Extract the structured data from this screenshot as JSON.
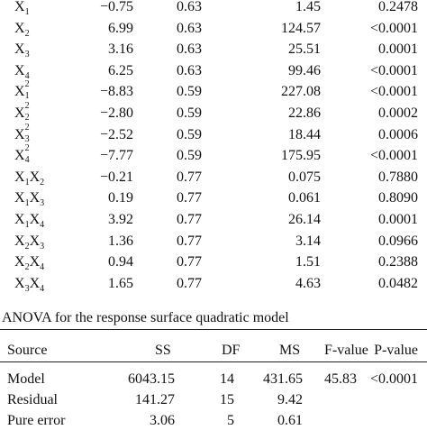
{
  "coef_table": {
    "rows": [
      {
        "term": "X|1",
        "coef": "−0.75",
        "se": "0.63",
        "f": "1.45",
        "p": "0.2478"
      },
      {
        "term": "X|2",
        "coef": "6.99",
        "se": "0.63",
        "f": "124.57",
        "p": "<0.0001"
      },
      {
        "term": "X|3",
        "coef": "3.16",
        "se": "0.63",
        "f": "25.51",
        "p": "0.0001"
      },
      {
        "term": "X|4",
        "coef": "6.25",
        "se": "0.63",
        "f": "99.46",
        "p": "<0.0001"
      },
      {
        "term": "X|1|2",
        "coef": "−8.83",
        "se": "0.59",
        "f": "227.08",
        "p": "<0.0001"
      },
      {
        "term": "X|2|2",
        "coef": "−2.80",
        "se": "0.59",
        "f": "22.86",
        "p": "0.0002"
      },
      {
        "term": "X|3|2",
        "coef": "−2.52",
        "se": "0.59",
        "f": "18.44",
        "p": "0.0006"
      },
      {
        "term": "X|4|2",
        "coef": "−7.77",
        "se": "0.59",
        "f": "175.95",
        "p": "<0.0001"
      },
      {
        "term": "X|1|X|2",
        "coef": "−0.21",
        "se": "0.77",
        "f": "0.075",
        "p": "0.7880"
      },
      {
        "term": "X|1|X|3",
        "coef": "0.19",
        "se": "0.77",
        "f": "0.061",
        "p": "0.8090"
      },
      {
        "term": "X|1|X|4",
        "coef": "3.92",
        "se": "0.77",
        "f": "26.14",
        "p": "0.0001"
      },
      {
        "term": "X|2|X|3",
        "coef": "1.36",
        "se": "0.77",
        "f": "3.14",
        "p": "0.0966"
      },
      {
        "term": "X|2|X|4",
        "coef": "0.94",
        "se": "0.77",
        "f": "1.51",
        "p": "0.2388"
      },
      {
        "term": "X|3|X|4",
        "coef": "1.65",
        "se": "0.77",
        "f": "4.63",
        "p": "0.0482"
      }
    ]
  },
  "anova": {
    "caption": "ANOVA for the response surface quadratic model",
    "headers": {
      "source": "Source",
      "ss": "SS",
      "df": "DF",
      "ms": "MS",
      "f": "F-value",
      "p": "P-value"
    },
    "rows": [
      {
        "source": "Model",
        "ss": "6043.15",
        "df": "14",
        "ms": "431.65",
        "f": "45.83",
        "p": "<0.0001"
      },
      {
        "source": "Residual",
        "ss": "141.27",
        "df": "15",
        "ms": "9.42",
        "f": "",
        "p": ""
      },
      {
        "source": "Pure error",
        "ss": "3.06",
        "df": "5",
        "ms": "0.61",
        "f": "",
        "p": ""
      }
    ]
  }
}
